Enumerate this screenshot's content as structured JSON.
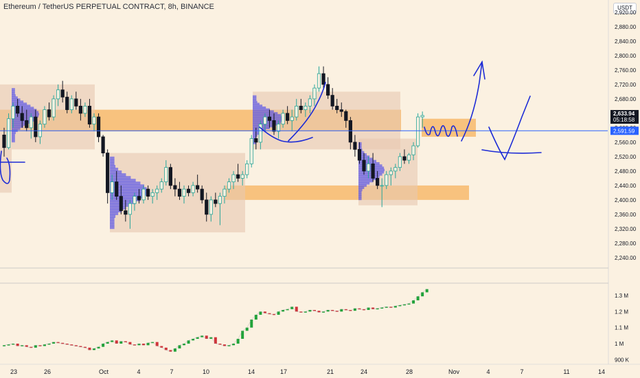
{
  "title": "Ethereum / TetherUS PERPETUAL CONTRACT, 8h, BINANCE",
  "unit": "USDT",
  "colors": {
    "background": "#fbf1e1",
    "up": "#26a69a",
    "down": "#131722",
    "zone": "#f7b25c",
    "profile_box": "#e8c8b0",
    "profile": "#3b3bf0",
    "annotation": "#1c2bd6",
    "price_line": "#2962ff",
    "indicator_up": "#21a33a",
    "indicator_down": "#d0343a"
  },
  "price_axis": {
    "ticks": [
      "2,920.00",
      "2,880.00",
      "2,840.00",
      "2,800.00",
      "2,760.00",
      "2,720.00",
      "2,680.00",
      "2,640.00",
      "2,600.00",
      "2,560.00",
      "2,520.00",
      "2,480.00",
      "2,440.00",
      "2,400.00",
      "2,360.00",
      "2,320.00",
      "2,280.00",
      "2,240.00"
    ],
    "current_price": "2,633.94",
    "countdown": "05:18:58",
    "line_price": "2,591.59"
  },
  "indicator_axis": {
    "ticks": [
      "1.3 M",
      "1.2 M",
      "1.1 M",
      "1 M",
      "900 K"
    ]
  },
  "time_axis": {
    "ticks": [
      "23",
      "26",
      "Oct",
      "4",
      "7",
      "10",
      "14",
      "17",
      "21",
      "24",
      "28",
      "Nov",
      "4",
      "7",
      "11",
      "14"
    ]
  },
  "chart_data": {
    "type": "candlestick",
    "symbol": "Ethereum / TetherUS PERPETUAL CONTRACT",
    "timeframe": "8h",
    "exchange": "BINANCE",
    "price_range": [
      2215,
      2935
    ],
    "candles_ohlc": [
      [
        2580,
        2600,
        2520,
        2545
      ],
      [
        2545,
        2640,
        2540,
        2625
      ],
      [
        2625,
        2670,
        2600,
        2660
      ],
      [
        2660,
        2680,
        2630,
        2640
      ],
      [
        2640,
        2660,
        2600,
        2620
      ],
      [
        2620,
        2650,
        2590,
        2600
      ],
      [
        2600,
        2640,
        2570,
        2630
      ],
      [
        2630,
        2650,
        2560,
        2575
      ],
      [
        2575,
        2620,
        2555,
        2610
      ],
      [
        2610,
        2660,
        2600,
        2650
      ],
      [
        2650,
        2670,
        2620,
        2630
      ],
      [
        2630,
        2690,
        2620,
        2680
      ],
      [
        2680,
        2720,
        2660,
        2705
      ],
      [
        2705,
        2730,
        2670,
        2685
      ],
      [
        2685,
        2700,
        2640,
        2650
      ],
      [
        2650,
        2690,
        2640,
        2680
      ],
      [
        2680,
        2700,
        2650,
        2660
      ],
      [
        2660,
        2680,
        2620,
        2640
      ],
      [
        2640,
        2670,
        2630,
        2660
      ],
      [
        2660,
        2680,
        2600,
        2610
      ],
      [
        2610,
        2640,
        2590,
        2630
      ],
      [
        2630,
        2640,
        2560,
        2575
      ],
      [
        2575,
        2580,
        2520,
        2530
      ],
      [
        2530,
        2540,
        2390,
        2420
      ],
      [
        2420,
        2470,
        2400,
        2450
      ],
      [
        2450,
        2480,
        2400,
        2410
      ],
      [
        2410,
        2440,
        2360,
        2370
      ],
      [
        2370,
        2400,
        2340,
        2360
      ],
      [
        2360,
        2400,
        2320,
        2390
      ],
      [
        2390,
        2420,
        2370,
        2410
      ],
      [
        2410,
        2430,
        2390,
        2400
      ],
      [
        2400,
        2440,
        2390,
        2430
      ],
      [
        2430,
        2440,
        2400,
        2410
      ],
      [
        2410,
        2430,
        2390,
        2420
      ],
      [
        2420,
        2440,
        2400,
        2430
      ],
      [
        2430,
        2460,
        2420,
        2450
      ],
      [
        2450,
        2510,
        2440,
        2490
      ],
      [
        2490,
        2500,
        2430,
        2440
      ],
      [
        2440,
        2460,
        2410,
        2430
      ],
      [
        2430,
        2450,
        2400,
        2410
      ],
      [
        2410,
        2440,
        2390,
        2430
      ],
      [
        2430,
        2440,
        2410,
        2420
      ],
      [
        2420,
        2450,
        2410,
        2440
      ],
      [
        2440,
        2470,
        2420,
        2430
      ],
      [
        2430,
        2440,
        2390,
        2400
      ],
      [
        2400,
        2420,
        2340,
        2360
      ],
      [
        2360,
        2410,
        2340,
        2400
      ],
      [
        2400,
        2420,
        2380,
        2390
      ],
      [
        2390,
        2420,
        2330,
        2410
      ],
      [
        2410,
        2440,
        2390,
        2430
      ],
      [
        2430,
        2460,
        2420,
        2450
      ],
      [
        2450,
        2480,
        2430,
        2470
      ],
      [
        2470,
        2500,
        2450,
        2460
      ],
      [
        2460,
        2480,
        2440,
        2470
      ],
      [
        2470,
        2510,
        2460,
        2500
      ],
      [
        2500,
        2580,
        2490,
        2570
      ],
      [
        2570,
        2600,
        2540,
        2560
      ],
      [
        2560,
        2620,
        2540,
        2610
      ],
      [
        2610,
        2640,
        2590,
        2630
      ],
      [
        2630,
        2650,
        2600,
        2620
      ],
      [
        2620,
        2640,
        2580,
        2590
      ],
      [
        2590,
        2620,
        2570,
        2610
      ],
      [
        2610,
        2650,
        2600,
        2640
      ],
      [
        2640,
        2660,
        2610,
        2620
      ],
      [
        2620,
        2650,
        2590,
        2630
      ],
      [
        2630,
        2680,
        2620,
        2660
      ],
      [
        2660,
        2680,
        2640,
        2650
      ],
      [
        2650,
        2670,
        2630,
        2660
      ],
      [
        2660,
        2690,
        2640,
        2680
      ],
      [
        2680,
        2720,
        2660,
        2710
      ],
      [
        2710,
        2770,
        2700,
        2750
      ],
      [
        2750,
        2770,
        2710,
        2720
      ],
      [
        2720,
        2740,
        2680,
        2690
      ],
      [
        2690,
        2710,
        2650,
        2660
      ],
      [
        2660,
        2680,
        2640,
        2650
      ],
      [
        2650,
        2670,
        2630,
        2645
      ],
      [
        2645,
        2650,
        2600,
        2620
      ],
      [
        2620,
        2630,
        2540,
        2560
      ],
      [
        2560,
        2580,
        2520,
        2540
      ],
      [
        2540,
        2560,
        2500,
        2510
      ],
      [
        2510,
        2530,
        2470,
        2480
      ],
      [
        2480,
        2520,
        2460,
        2500
      ],
      [
        2500,
        2530,
        2450,
        2460
      ],
      [
        2460,
        2480,
        2430,
        2440
      ],
      [
        2440,
        2460,
        2380,
        2440
      ],
      [
        2440,
        2480,
        2430,
        2470
      ],
      [
        2470,
        2490,
        2440,
        2480
      ],
      [
        2480,
        2500,
        2460,
        2490
      ],
      [
        2490,
        2530,
        2480,
        2520
      ],
      [
        2520,
        2540,
        2500,
        2510
      ],
      [
        2510,
        2530,
        2500,
        2525
      ],
      [
        2525,
        2560,
        2510,
        2550
      ],
      [
        2550,
        2640,
        2545,
        2630
      ],
      [
        2630,
        2645,
        2600,
        2634
      ]
    ],
    "horizontal_price_line": 2591.59,
    "zones": [
      {
        "from_price": 2590,
        "to_price": 2650
      },
      {
        "from_price": 2400,
        "to_price": 2440
      },
      {
        "from_price": 2575,
        "to_price": 2625
      }
    ],
    "indicator": {
      "range": [
        880000,
        1360000
      ],
      "values": [
        990000,
        995000,
        1000000,
        985000,
        990000,
        980000,
        975000,
        990000,
        985000,
        995000,
        1000000,
        1010000,
        1005000,
        1000000,
        995000,
        990000,
        985000,
        980000,
        975000,
        960000,
        970000,
        980000,
        1000000,
        1010000,
        1020000,
        1000000,
        1015000,
        1010000,
        995000,
        990000,
        1000000,
        990000,
        1005000,
        1010000,
        985000,
        975000,
        960000,
        950000,
        970000,
        990000,
        1000000,
        1020000,
        1030000,
        1040000,
        1050000,
        1030000,
        1040000,
        1000000,
        995000,
        985000,
        990000,
        1000000,
        1030000,
        1080000,
        1100000,
        1150000,
        1180000,
        1200000,
        1190000,
        1185000,
        1180000,
        1200000,
        1210000,
        1215000,
        1230000,
        1200000,
        1195000,
        1200000,
        1210000,
        1205000,
        1195000,
        1200000,
        1210000,
        1205000,
        1200000,
        1215000,
        1210000,
        1205000,
        1220000,
        1215000,
        1210000,
        1225000,
        1215000,
        1220000,
        1225000,
        1230000,
        1225000,
        1235000,
        1240000,
        1245000,
        1250000,
        1270000,
        1295000,
        1320000,
        1340000
      ]
    }
  }
}
